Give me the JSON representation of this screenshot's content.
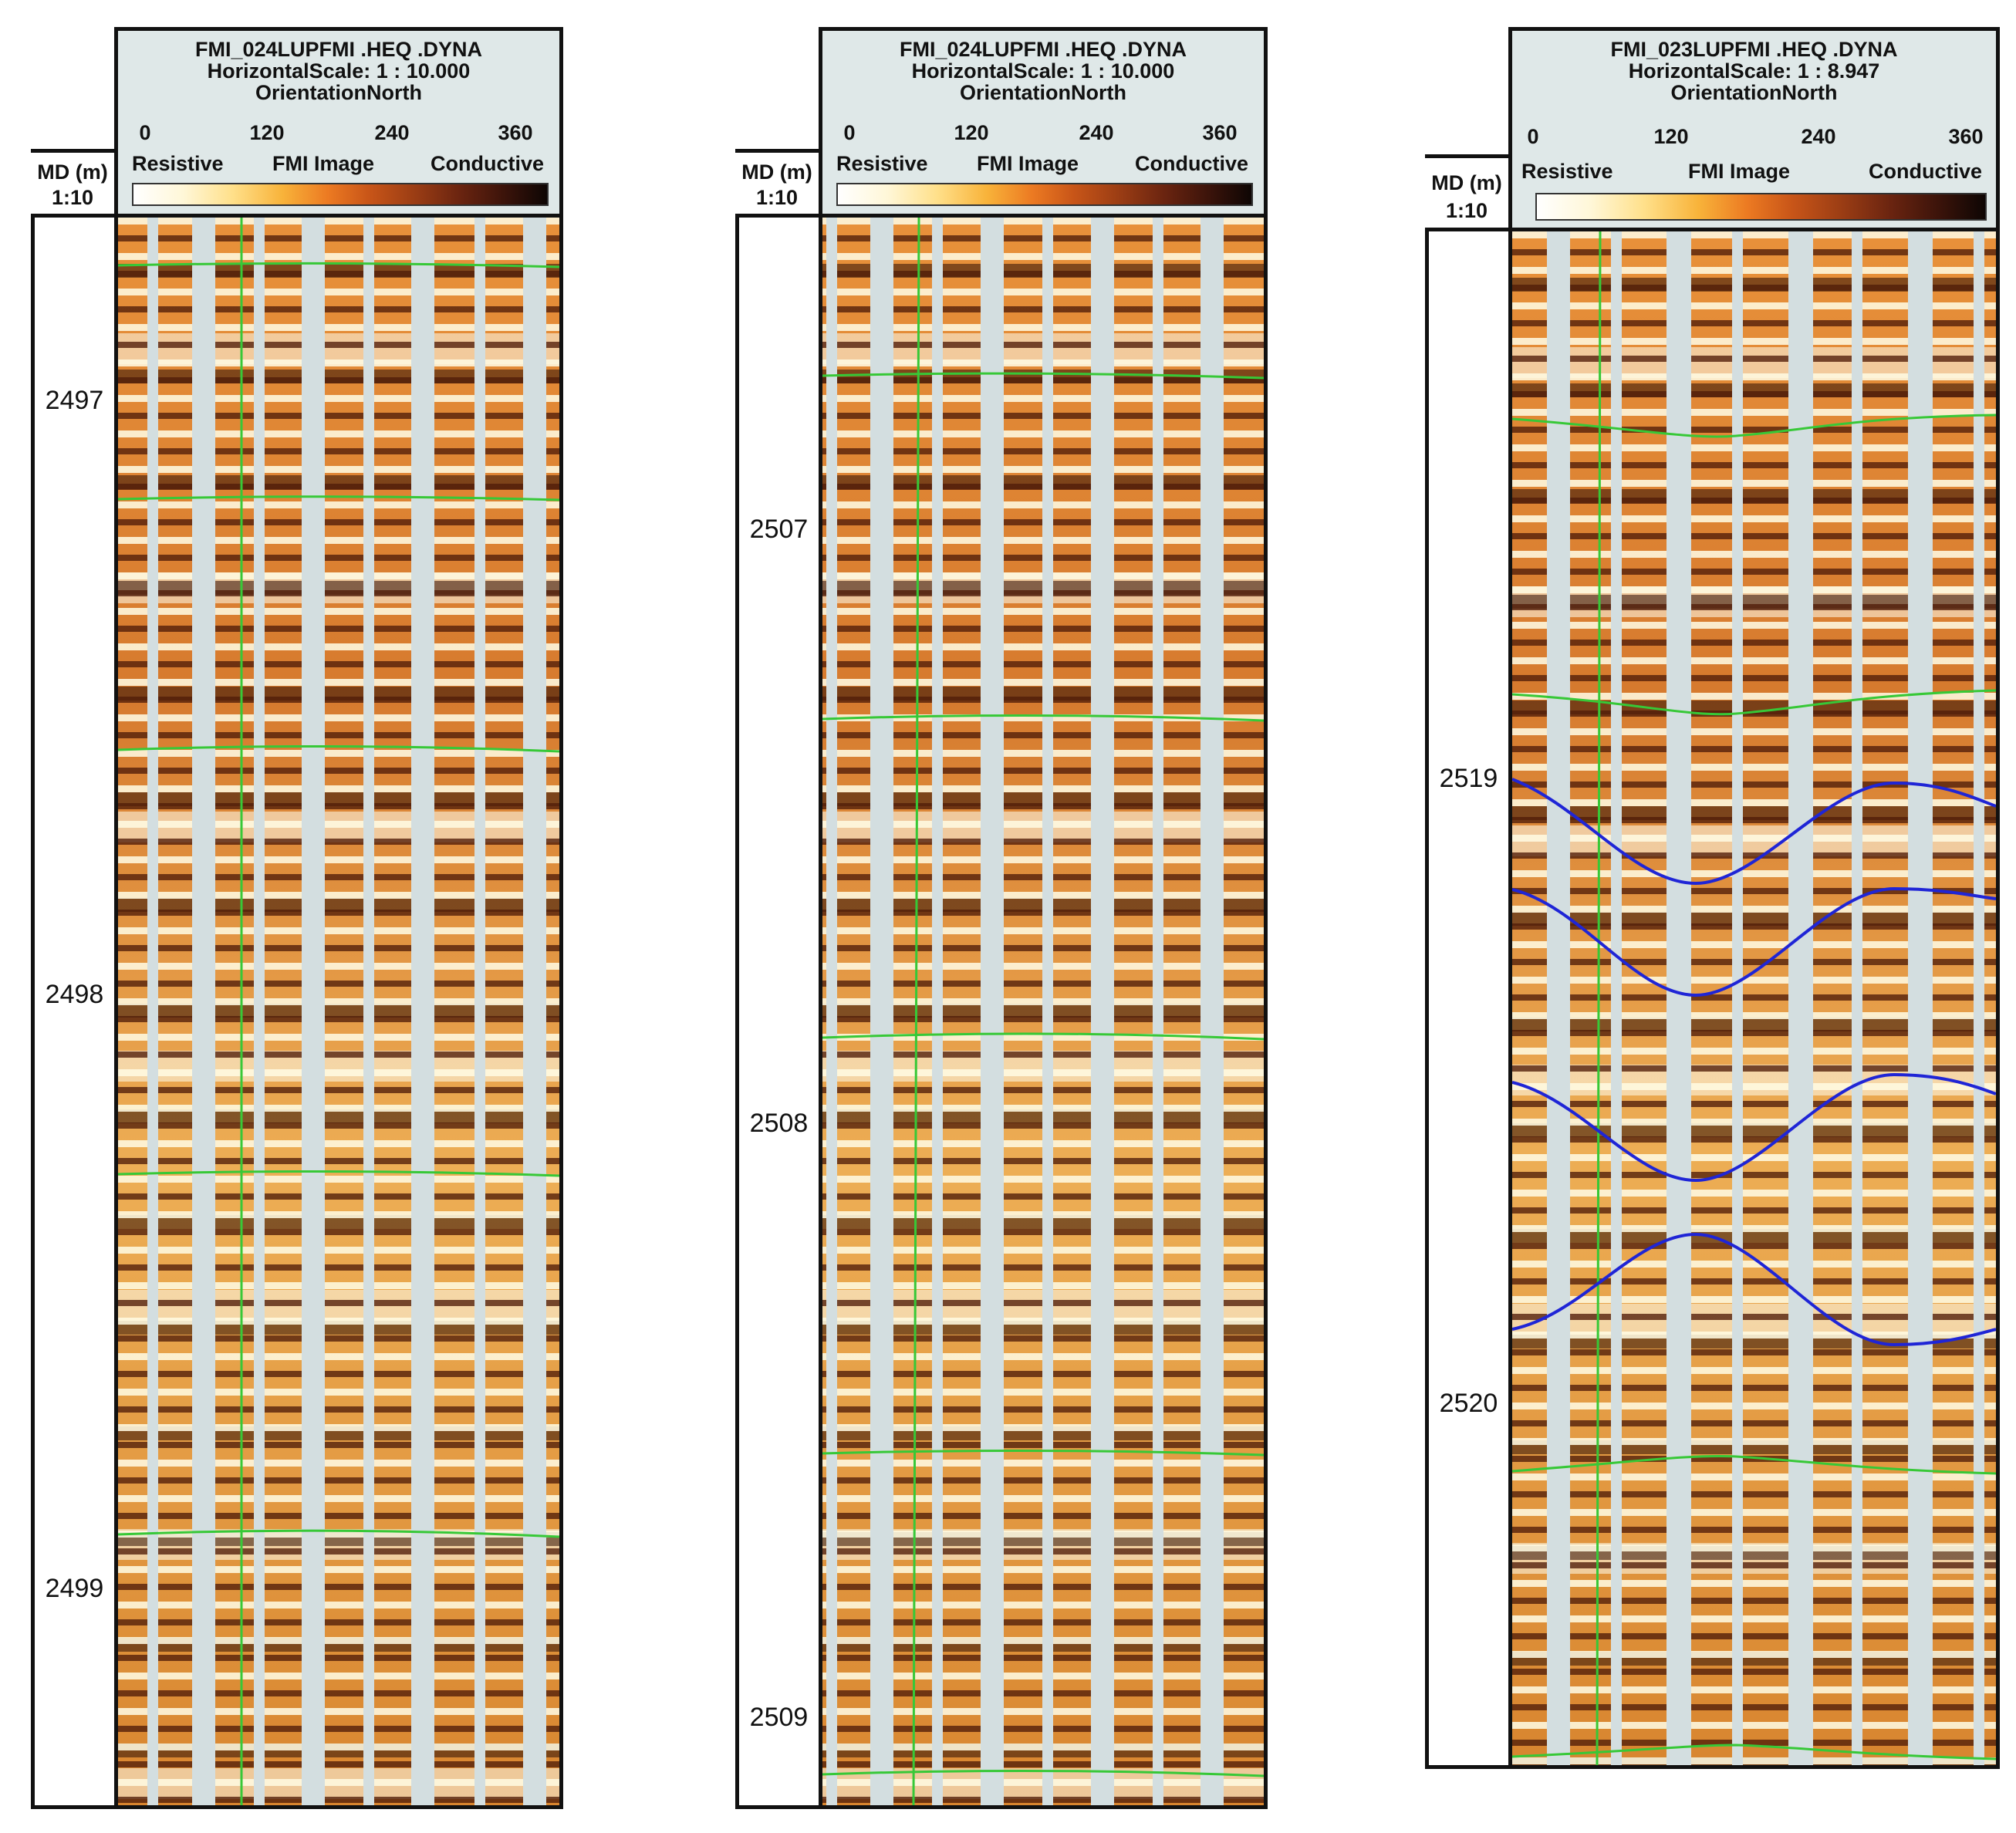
{
  "colors": {
    "header_bg": "#dfe8e8",
    "pad_gap": "#d3dee0",
    "bedding_line": "#37c837",
    "fracture_line": "#1f25d6"
  },
  "panels": [
    {
      "title": "FMI_024LUPFMI .HEQ .DYNA",
      "scale": "HorizontalScale: 1 : 10.000",
      "orientation": "OrientationNorth",
      "md_label": "MD (m)",
      "md_scale": "1:10",
      "azimuth_ticks": [
        "0",
        "120",
        "240",
        "360"
      ],
      "legend_left": "Resistive",
      "legend_center": "FMI Image",
      "legend_right": "Conductive",
      "depths": [
        "2497",
        "2498",
        "2499"
      ]
    },
    {
      "title": "FMI_024LUPFMI .HEQ .DYNA",
      "scale": "HorizontalScale: 1 : 10.000",
      "orientation": "OrientationNorth",
      "md_label": "MD (m)",
      "md_scale": "1:10",
      "azimuth_ticks": [
        "0",
        "120",
        "240",
        "360"
      ],
      "legend_left": "Resistive",
      "legend_center": "FMI Image",
      "legend_right": "Conductive",
      "depths": [
        "2507",
        "2508",
        "2509"
      ]
    },
    {
      "title": "FMI_023LUPFMI .HEQ .DYNA",
      "scale": "HorizontalScale: 1 : 8.947",
      "orientation": "OrientationNorth",
      "md_label": "MD (m)",
      "md_scale": "1:10",
      "azimuth_ticks": [
        "0",
        "120",
        "240",
        "360"
      ],
      "legend_left": "Resistive",
      "legend_center": "FMI Image",
      "legend_right": "Conductive",
      "depths": [
        "2519",
        "2520"
      ]
    }
  ]
}
